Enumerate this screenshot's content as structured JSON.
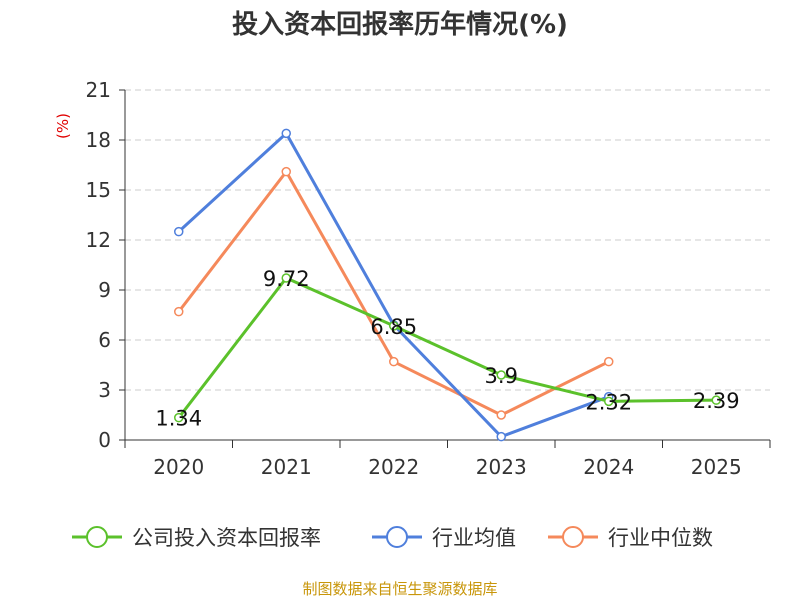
{
  "title": "投入资本回报率历年情况(%)",
  "source": "制图数据来自恒生聚源数据库",
  "colors": {
    "company": "#5bc12b",
    "industry_avg": "#4f7fdc",
    "industry_median": "#f5895b",
    "ylabel": "#e00000",
    "axis": "#333333",
    "grid": "#cccccc",
    "source": "#c8960a"
  },
  "chart_data": {
    "type": "line",
    "title": "投入资本回报率历年情况(%)",
    "xlabel": "",
    "ylabel": "(%)",
    "categories": [
      "2020",
      "2021",
      "2022",
      "2023",
      "2024",
      "2025"
    ],
    "ylim": [
      0,
      21
    ],
    "yticks": [
      0,
      3,
      6,
      9,
      12,
      15,
      18,
      21
    ],
    "grid": true,
    "legend_position": "bottom",
    "series": [
      {
        "name": "公司投入资本回报率",
        "values": [
          1.34,
          9.72,
          6.85,
          3.9,
          2.32,
          2.39
        ],
        "labels": [
          "1.34",
          "9.72",
          "6.85",
          "3.9",
          "2.32",
          "2.39"
        ],
        "color_key": "company"
      },
      {
        "name": "行业均值",
        "values": [
          12.5,
          18.4,
          6.9,
          0.2,
          2.6,
          null
        ],
        "color_key": "industry_avg"
      },
      {
        "name": "行业中位数",
        "values": [
          7.7,
          16.1,
          4.7,
          1.5,
          4.7,
          null
        ],
        "color_key": "industry_median"
      }
    ]
  }
}
